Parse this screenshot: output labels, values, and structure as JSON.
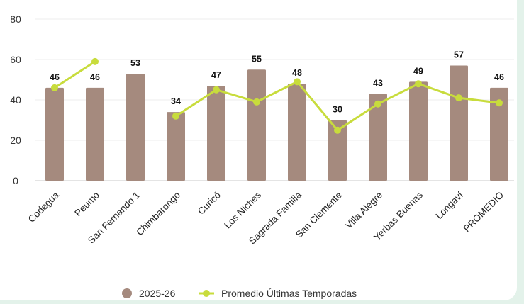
{
  "chart_data": {
    "type": "bar",
    "title": "",
    "xlabel": "",
    "ylabel": "",
    "ylim": [
      0,
      80
    ],
    "yticks": [
      0,
      20,
      40,
      60,
      80
    ],
    "grid": true,
    "legend_position": "bottom",
    "categories": [
      "Codegua",
      "Peumo",
      "San Fernando 1",
      "Chimbarongo",
      "Curicó",
      "Los Niches",
      "Sagrada Familia",
      "San Clemente",
      "Villa Alegre",
      "Yerbas Buenas",
      "Longaví",
      "PROMEDIO"
    ],
    "series": [
      {
        "name": "2025-26",
        "kind": "bar",
        "color": "#a58a7e",
        "values": [
          46,
          46,
          53,
          34,
          47,
          55,
          48,
          30,
          43,
          49,
          57,
          46
        ],
        "data_labels": [
          "46",
          "46",
          "53",
          "34",
          "47",
          "55",
          "48",
          "30",
          "43",
          "49",
          "57",
          "46"
        ]
      },
      {
        "name": "Promedio Últimas Temporadas",
        "kind": "line",
        "color": "#c8dc3c",
        "values": [
          46,
          59,
          null,
          32,
          45,
          39,
          49,
          25,
          38,
          48,
          41,
          38.5
        ]
      }
    ]
  }
}
